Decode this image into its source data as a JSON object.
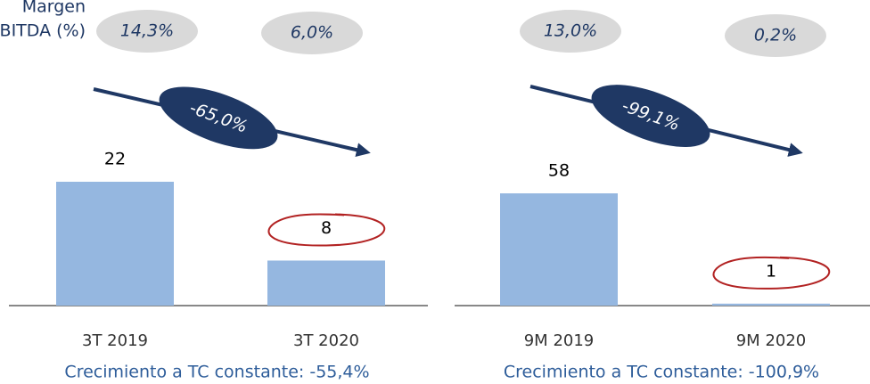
{
  "header": {
    "title_lines": [
      "Margen",
      "EBITDA (%)"
    ]
  },
  "chart_data": [
    {
      "type": "bar",
      "categories": [
        "3T 2019",
        "3T 2020"
      ],
      "values": [
        22,
        8
      ],
      "color": "#95b7e0",
      "ebitda_margin": {
        "values": [
          14.3,
          6.0
        ],
        "value_labels": [
          "14,3%",
          "6,0%"
        ]
      },
      "growth": {
        "value": -65.0,
        "label": "-65,0%"
      },
      "note": "Crecimiento a TC constante: -55,4%"
    },
    {
      "type": "bar",
      "categories": [
        "9M 2019",
        "9M 2020"
      ],
      "values": [
        58,
        1
      ],
      "color": "#95b7e0",
      "ebitda_margin": {
        "values": [
          13.0,
          0.2
        ],
        "value_labels": [
          "13,0%",
          "0,2%"
        ]
      },
      "growth": {
        "value": -99.1,
        "label": "-99,1%"
      },
      "note": "Crecimiento a TC constante: -100,9%"
    }
  ]
}
